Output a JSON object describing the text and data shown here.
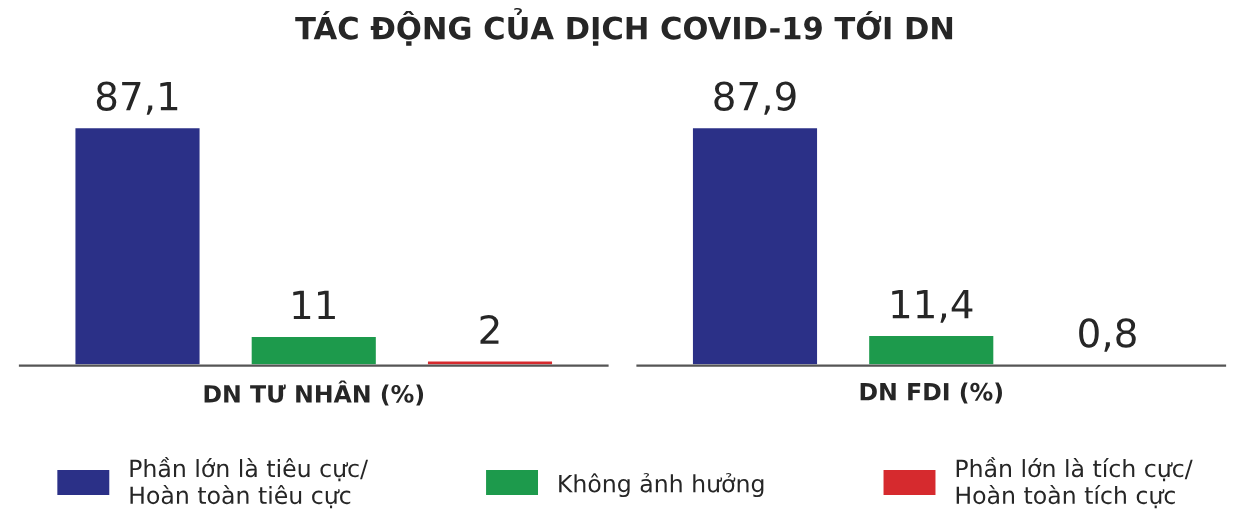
{
  "chart_data": [
    {
      "type": "bar",
      "title": "TÁC ĐỘNG CỦA DỊCH COVID-19 TỚI DN",
      "xlabel": "DN TƯ NHÂN (%)",
      "categories": [
        null
      ],
      "legend": "bottom",
      "series": [
        {
          "name": "Phần lớn là tiêu cực/\nHoàn toàn tiêu cực",
          "color": "#2b3087",
          "values": [
            87.1
          ],
          "value_labels": [
            "87,1"
          ]
        },
        {
          "name": "Không ảnh hưởng",
          "color": "#1d9a4c",
          "values": [
            11
          ],
          "value_labels": [
            "11"
          ]
        },
        {
          "name": "Phần lớn là tích cực/\nHoàn toàn tích cực",
          "color": "#d62a2e",
          "values": [
            2
          ],
          "value_labels": [
            "2"
          ]
        }
      ]
    },
    {
      "type": "bar",
      "xlabel": "DN FDI (%)",
      "categories": [
        null
      ],
      "series": [
        {
          "color": "#2b3087",
          "values": [
            87.9
          ],
          "value_labels": [
            "87,9"
          ]
        },
        {
          "color": "#1d9a4c",
          "values": [
            11.4
          ],
          "value_labels": [
            "11,4"
          ]
        },
        {
          "color": "#d62a2e",
          "values": [
            0.8
          ],
          "value_labels": [
            "0,8"
          ]
        }
      ]
    }
  ]
}
